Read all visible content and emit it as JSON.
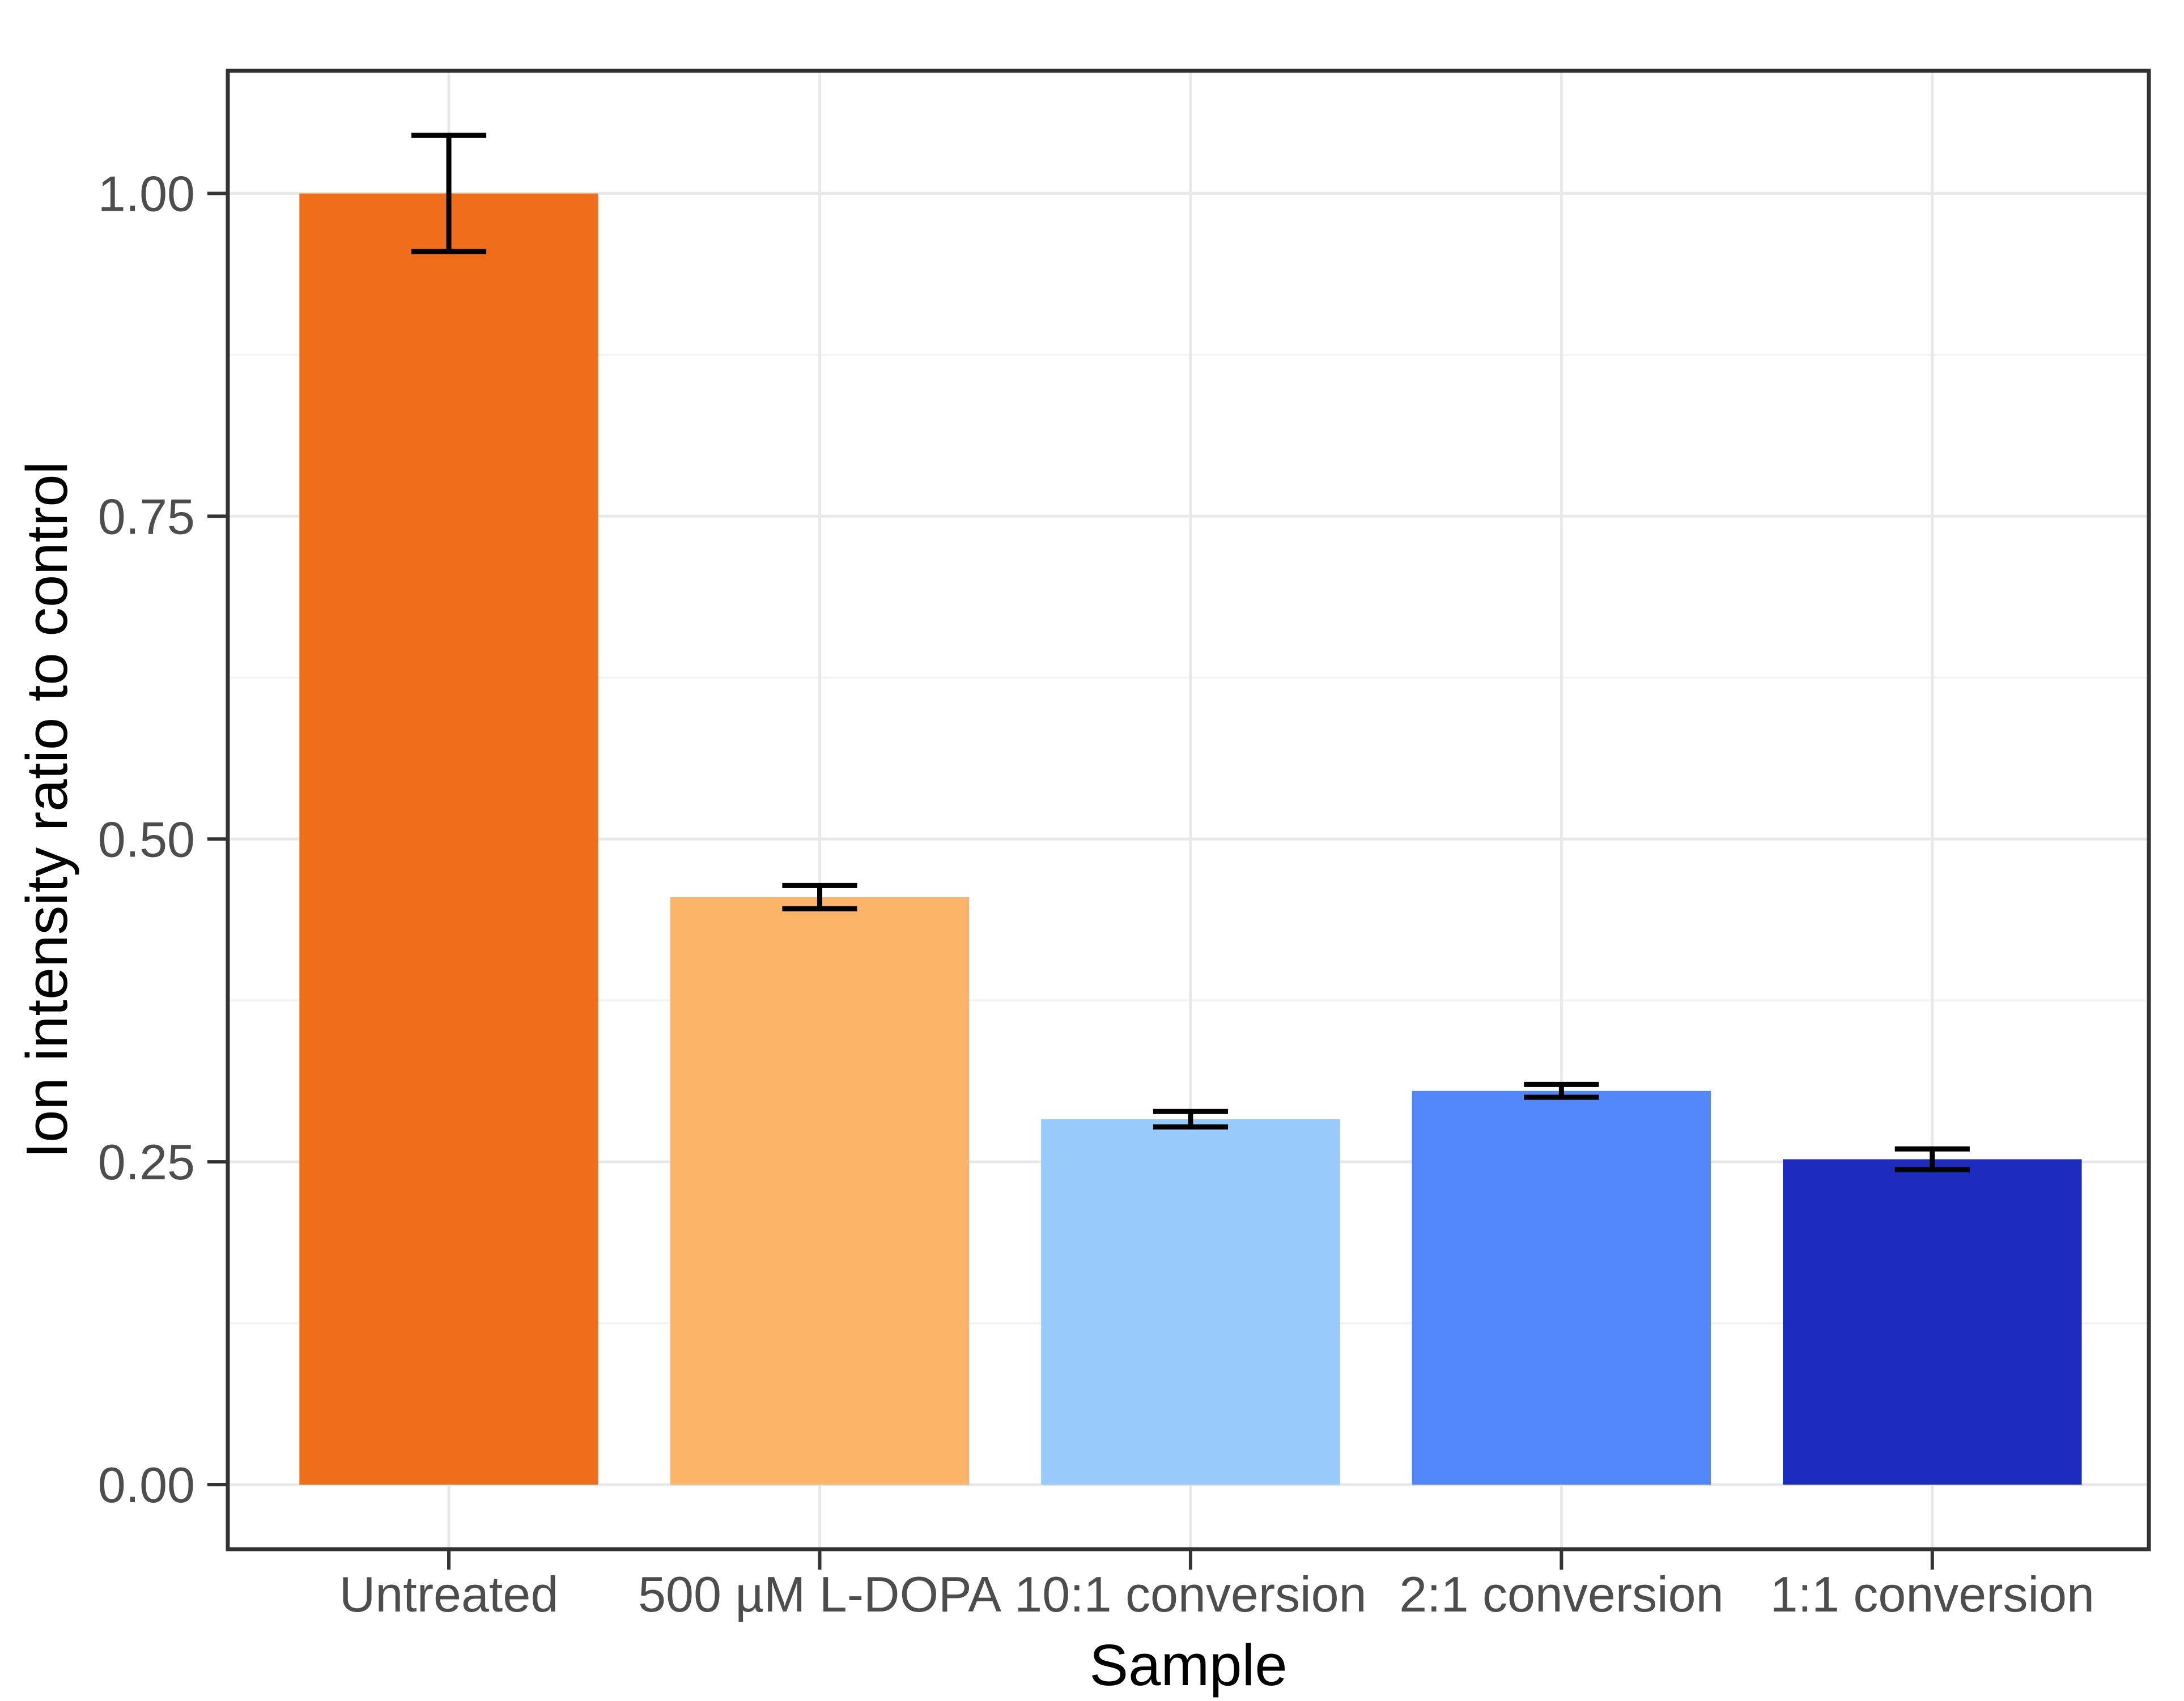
{
  "chart_data": {
    "type": "bar",
    "title": "",
    "xlabel": "Sample",
    "ylabel": "Ion intensity ratio to control",
    "categories": [
      "Untreated",
      "500 µM L-DOPA",
      "10:1 conversion",
      "2:1 conversion",
      "1:1 conversion"
    ],
    "values": [
      1.0,
      0.455,
      0.283,
      0.305,
      0.252
    ],
    "error_bars": [
      0.045,
      0.009,
      0.006,
      0.005,
      0.008
    ],
    "bar_colors": [
      "#EE6E1C",
      "#FCB469",
      "#97CBFB",
      "#5287FA",
      "#1B2CBF"
    ],
    "ylim": [
      -0.05,
      1.095
    ],
    "yticks": [
      0,
      0.25,
      0.5,
      0.75,
      1.0
    ],
    "ytick_labels": [
      "0.00",
      "0.25",
      "0.50",
      "0.75",
      "1.00"
    ],
    "minor_yticks": [
      0.125,
      0.375,
      0.625,
      0.875
    ],
    "grid": "major-and-minor",
    "legend": "none",
    "styles": {
      "background": "#FFFFFF",
      "panel_background": "#FFFFFF",
      "panel_border_color": "#333333",
      "major_grid_color": "#E8E8E8",
      "minor_grid_color": "#F3F3F3",
      "tick_color": "#333333",
      "tick_label_color": "#4D4D4D",
      "axis_title_color": "#000000",
      "error_bar_color": "#000000"
    }
  }
}
